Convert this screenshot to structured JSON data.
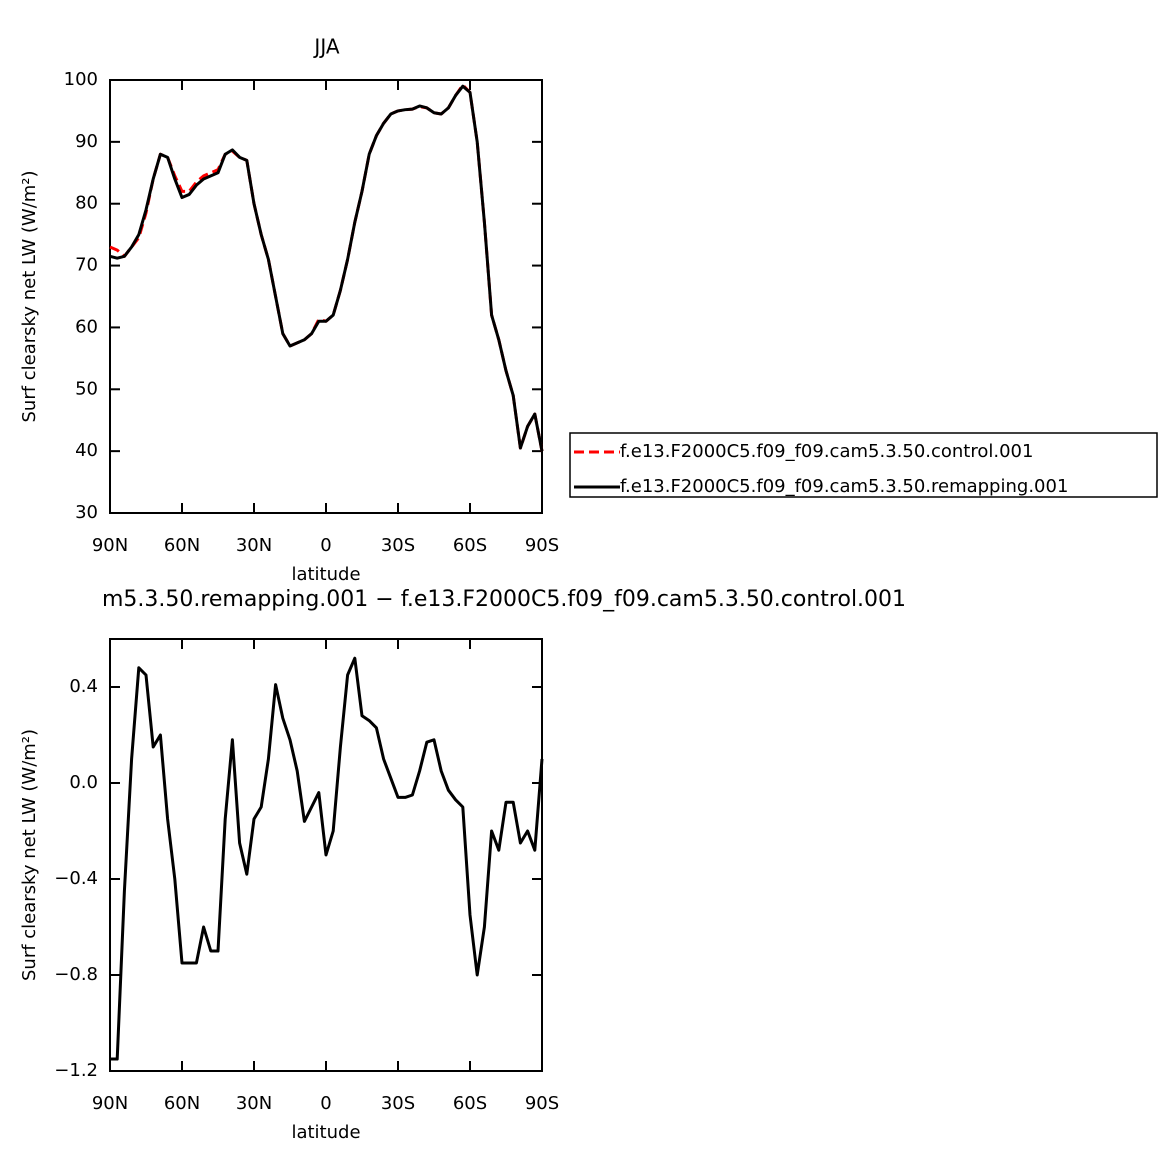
{
  "chart_data": [
    {
      "type": "line",
      "title": "JJA",
      "xlabel": "latitude",
      "ylabel": "Surf clearsky net LW (W/m²)",
      "x": [
        90,
        87,
        84,
        81,
        78,
        75,
        72,
        69,
        66,
        63,
        60,
        57,
        54,
        51,
        48,
        45,
        42,
        39,
        36,
        33,
        30,
        27,
        24,
        21,
        18,
        15,
        12,
        9,
        6,
        3,
        0,
        -3,
        -6,
        -9,
        -12,
        -15,
        -18,
        -21,
        -24,
        -27,
        -30,
        -33,
        -36,
        -39,
        -42,
        -45,
        -48,
        -51,
        -54,
        -57,
        -60,
        -63,
        -66,
        -69,
        -72,
        -75,
        -78,
        -81,
        -84,
        -87,
        -90
      ],
      "series": [
        {
          "name": "f.e13.F2000C5.f09_f09.cam5.3.50.control.001",
          "color": "#ff0000",
          "linestyle": "dashed",
          "values": [
            73,
            72.5,
            71.5,
            73,
            74.5,
            78.5,
            84,
            88,
            87.5,
            84.5,
            82,
            82,
            83.5,
            84.5,
            85,
            85.5,
            88,
            88.5,
            87.5,
            87,
            80,
            75,
            71,
            65,
            59,
            57,
            57.5,
            58,
            59,
            61.3,
            61,
            62,
            66,
            71,
            77,
            82,
            88,
            91,
            93,
            94.5,
            95,
            95.2,
            95.3,
            95.7,
            95.5,
            94.7,
            94.5,
            95.5,
            97.5,
            99.2,
            98,
            90,
            77,
            62,
            58,
            53,
            49,
            40.5,
            44,
            46,
            40
          ]
        },
        {
          "name": "f.e13.F2000C5.f09_f09.cam5.3.50.remapping.001",
          "color": "#000000",
          "linestyle": "solid",
          "values": [
            71.5,
            71.2,
            71.5,
            73,
            75,
            79,
            84,
            88,
            87.5,
            84,
            81,
            81.5,
            83,
            84,
            84.5,
            85,
            88,
            88.7,
            87.5,
            87,
            80,
            75,
            71,
            65,
            59,
            57,
            57.5,
            58,
            59,
            61,
            61,
            62,
            66,
            71,
            77,
            82,
            88,
            91,
            93,
            94.5,
            95,
            95.2,
            95.3,
            95.8,
            95.5,
            94.7,
            94.5,
            95.5,
            97.5,
            99,
            98,
            90,
            77,
            62,
            58,
            53,
            49,
            40.5,
            44,
            46,
            40
          ]
        }
      ],
      "xlim": [
        90,
        -90
      ],
      "xticks": [
        {
          "value": 90,
          "label": "90N"
        },
        {
          "value": 60,
          "label": "60N"
        },
        {
          "value": 30,
          "label": "30N"
        },
        0,
        {
          "value": -30,
          "label": "30S"
        },
        {
          "value": -60,
          "label": "60S"
        },
        {
          "value": -90,
          "label": "90S"
        }
      ],
      "ylim": [
        30,
        100
      ],
      "yticks": [
        30,
        40,
        50,
        60,
        70,
        80,
        90,
        100
      ],
      "legend": "right"
    },
    {
      "type": "line",
      "title": "m5.3.50.remapping.001 − f.e13.F2000C5.f09_f09.cam5.3.50.control.001",
      "xlabel": "latitude",
      "ylabel": "Surf clearsky net LW (W/m²)",
      "x": [
        90,
        87,
        84,
        81,
        78,
        75,
        72,
        69,
        66,
        63,
        60,
        57,
        54,
        51,
        48,
        45,
        42,
        39,
        36,
        33,
        30,
        27,
        24,
        21,
        18,
        15,
        12,
        9,
        6,
        3,
        0,
        -3,
        -6,
        -9,
        -12,
        -15,
        -18,
        -21,
        -24,
        -27,
        -30,
        -33,
        -36,
        -39,
        -42,
        -45,
        -48,
        -51,
        -54,
        -57,
        -60,
        -63,
        -66,
        -69,
        -72,
        -75,
        -78,
        -81,
        -84,
        -87,
        -90
      ],
      "series": [
        {
          "color": "#000000",
          "linestyle": "solid",
          "values": [
            -1.15,
            -1.15,
            -0.45,
            0.1,
            0.48,
            0.45,
            0.15,
            0.2,
            -0.15,
            -0.4,
            -0.75,
            -0.75,
            -0.75,
            -0.6,
            -0.7,
            -0.7,
            -0.15,
            0.18,
            -0.25,
            -0.38,
            -0.15,
            -0.1,
            0.1,
            0.41,
            0.27,
            0.18,
            0.05,
            -0.16,
            -0.1,
            -0.04,
            -0.3,
            -0.2,
            0.15,
            0.45,
            0.52,
            0.28,
            0.26,
            0.23,
            0.1,
            0.02,
            -0.06,
            -0.06,
            -0.05,
            0.05,
            0.17,
            0.18,
            0.05,
            -0.03,
            -0.07,
            -0.1,
            -0.55,
            -0.8,
            -0.6,
            -0.2,
            -0.28,
            -0.08,
            -0.08,
            -0.25,
            -0.2,
            -0.28,
            0.1
          ]
        }
      ],
      "xlim": [
        90,
        -90
      ],
      "xticks": [
        {
          "value": 90,
          "label": "90N"
        },
        {
          "value": 60,
          "label": "60N"
        },
        {
          "value": 30,
          "label": "30N"
        },
        0,
        {
          "value": -30,
          "label": "30S"
        },
        {
          "value": -60,
          "label": "60S"
        },
        {
          "value": -90,
          "label": "90S"
        }
      ],
      "ylim": [
        -1.2,
        0.6
      ],
      "yticks": [
        {
          "value": -1.2,
          "label": "−1.2"
        },
        {
          "value": -0.8,
          "label": "−0.8"
        },
        {
          "value": -0.4,
          "label": "−0.4"
        },
        {
          "value": 0,
          "label": "0.0"
        },
        0.4
      ]
    }
  ]
}
